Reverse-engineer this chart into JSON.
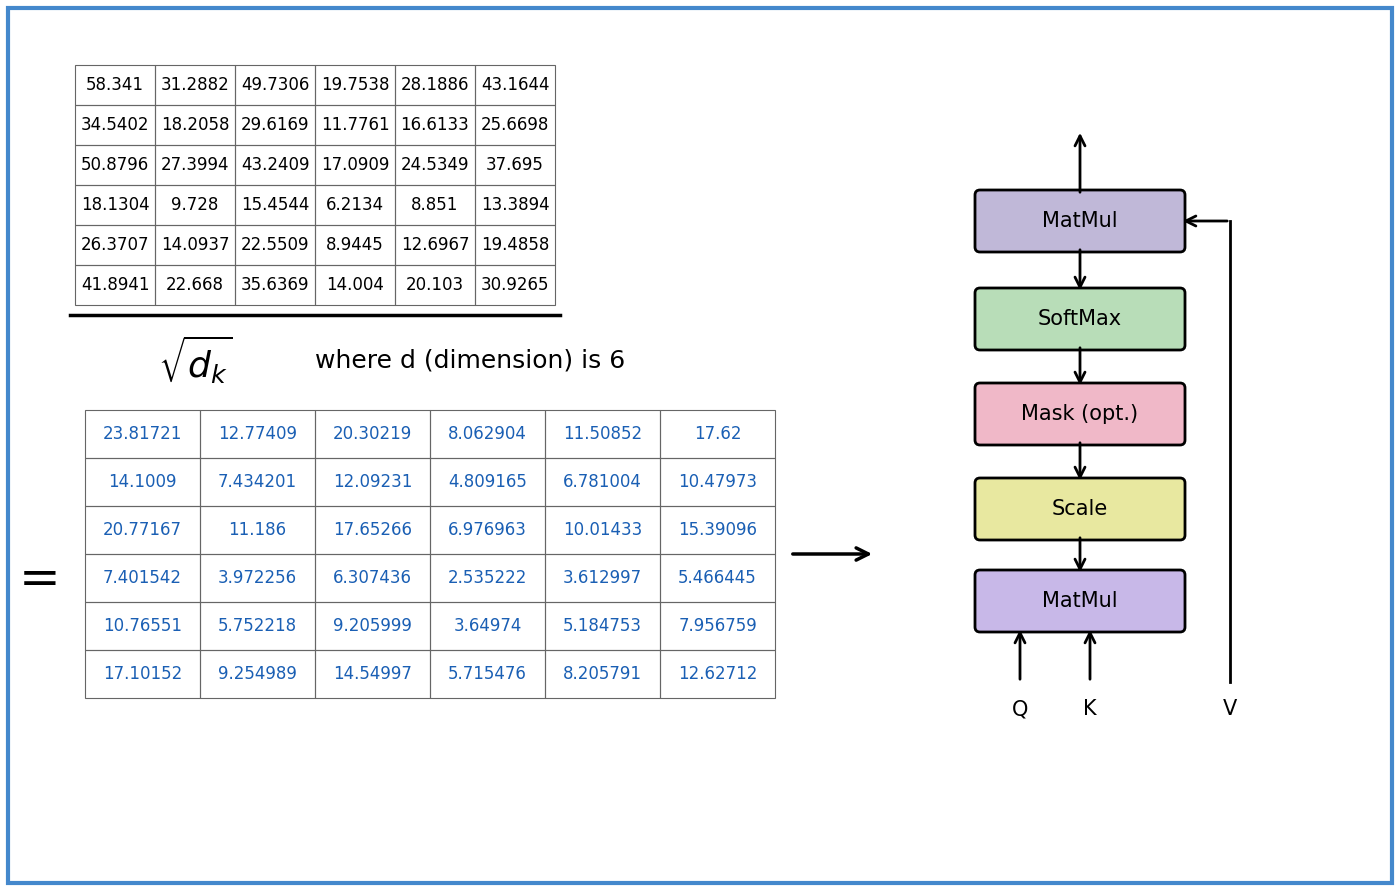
{
  "bg_color": "#ffffff",
  "border_color": "#4488cc",
  "top_matrix": [
    [
      "58.341",
      "31.2882",
      "49.7306",
      "19.7538",
      "28.1886",
      "43.1644"
    ],
    [
      "34.5402",
      "18.2058",
      "29.6169",
      "11.7761",
      "16.6133",
      "25.6698"
    ],
    [
      "50.8796",
      "27.3994",
      "43.2409",
      "17.0909",
      "24.5349",
      "37.695"
    ],
    [
      "18.1304",
      "9.728",
      "15.4544",
      "6.2134",
      "8.851",
      "13.3894"
    ],
    [
      "26.3707",
      "14.0937",
      "22.5509",
      "8.9445",
      "12.6967",
      "19.4858"
    ],
    [
      "41.8941",
      "22.668",
      "35.6369",
      "14.004",
      "20.103",
      "30.9265"
    ]
  ],
  "bottom_matrix": [
    [
      "23.81721",
      "12.77409",
      "20.30219",
      "8.062904",
      "11.50852",
      "17.62"
    ],
    [
      "14.1009",
      "7.434201",
      "12.09231",
      "4.809165",
      "6.781004",
      "10.47973"
    ],
    [
      "20.77167",
      "11.186",
      "17.65266",
      "6.976963",
      "10.01433",
      "15.39096"
    ],
    [
      "7.401542",
      "3.972256",
      "6.307436",
      "2.535222",
      "3.612997",
      "5.466445"
    ],
    [
      "10.76551",
      "5.752218",
      "9.205999",
      "3.64974",
      "5.184753",
      "7.956759"
    ],
    [
      "17.10152",
      "9.254989",
      "14.54997",
      "5.715476",
      "8.205791",
      "12.62712"
    ]
  ],
  "text_color_top": "#000000",
  "text_color_bottom": "#1a5fb4",
  "table_border_color": "#666666",
  "formula_text": "where d (dimension) is 6",
  "box_labels": [
    "MatMul",
    "Scale",
    "Mask (opt.)",
    "SoftMax",
    "MatMul"
  ],
  "box_colors": [
    "#c8b8e8",
    "#e8e8a0",
    "#f0b8c8",
    "#b8ddb8",
    "#c0b8d8"
  ],
  "qkv_labels": [
    "Q",
    "K",
    "V"
  ]
}
